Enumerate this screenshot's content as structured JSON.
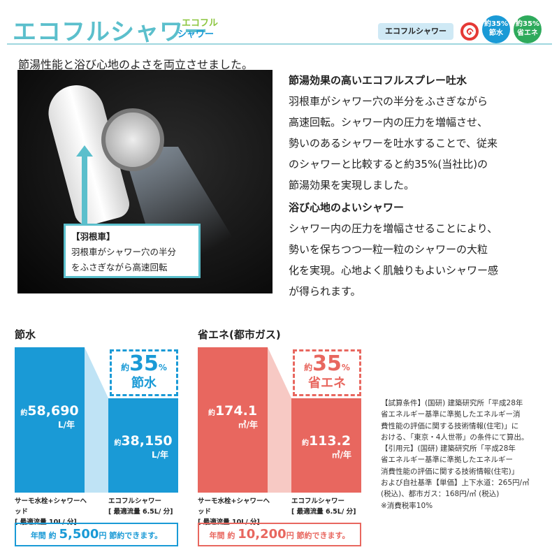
{
  "header": {
    "title": "エコフルシャワー",
    "logo_line1": "エコフル",
    "logo_line2": "シャワー",
    "badge_name": "エコフルシャワー",
    "gmark": "G",
    "badge_water": {
      "top": "約35%",
      "bottom": "節水"
    },
    "badge_energy": {
      "top": "約35%",
      "bottom": "省エネ"
    }
  },
  "subtitle": "節湯性能と浴び心地のよさを両立させました。",
  "photo_callout": {
    "title": "【羽根車】",
    "line1": "羽根車がシャワー穴の半分",
    "line2": "をふさぎながら高速回転"
  },
  "feature1": {
    "heading": "節湯効果の高いエコフルスプレー吐水",
    "lines": [
      "羽根車がシャワー穴の半分をふさぎながら",
      "高速回転。シャワー内の圧力を増幅させ、",
      "勢いのあるシャワーを吐水することで、従来",
      "のシャワーと比較すると約35%(当社比)の",
      "節湯効果を実現しました。"
    ]
  },
  "feature2": {
    "heading": "浴び心地のよいシャワー",
    "lines": [
      "シャワー内の圧力を増幅させることにより、",
      "勢いを保ちつつ一粒一粒のシャワーの大粒",
      "化を実現。心地よく肌触りもよいシャワー感",
      "が得られます。"
    ]
  },
  "colors": {
    "water": "#1a9ad6",
    "water_light": "#bfe3f5",
    "energy": "#e8675f",
    "energy_light": "#f7c9c4",
    "accent": "#5bbfcc"
  },
  "chart_data": [
    {
      "type": "bar",
      "title": "節水",
      "categories": [
        "サーモ水栓+シャワーヘッド",
        "エコフルシャワー"
      ],
      "category_sub": [
        "[ 最適流量 10L/ 分]",
        "[ 最適流量 6.5L/ 分]"
      ],
      "values": [
        58690,
        38150
      ],
      "value_labels": [
        "58,690",
        "38,150"
      ],
      "prefix": "約",
      "unit": "L/年",
      "reduction": {
        "prefix": "約",
        "value": "35",
        "pct": "%",
        "label": "節水"
      },
      "saving": {
        "pre": "年間 約",
        "amount": "5,500",
        "yen": "円",
        "post": "節約できます。"
      }
    },
    {
      "type": "bar",
      "title": "省エネ(都市ガス)",
      "categories": [
        "サーモ水栓+シャワーヘッド",
        "エコフルシャワー"
      ],
      "category_sub": [
        "[ 最適流量 10L/ 分]",
        "[ 最適流量 6.5L/ 分]"
      ],
      "values": [
        174.1,
        113.2
      ],
      "value_labels": [
        "174.1",
        "113.2"
      ],
      "prefix": "約",
      "unit": "㎥/年",
      "reduction": {
        "prefix": "約",
        "value": "35",
        "pct": "%",
        "label": "省エネ"
      },
      "saving": {
        "pre": "年間 約",
        "amount": "10,200",
        "yen": "円",
        "post": "節約できます。"
      }
    }
  ],
  "note": [
    "【試算条件】(国研) 建築研究所「平成28年",
    "省エネルギー基準に準拠したエネルギー消",
    "費性能の評価に関する技術情報(住宅)」に",
    "おける、「東京・4人世帯」の条件にて算出。",
    "【引用元】(国研) 建築研究所「平成28年",
    "省エネルギー基準に準拠したエネルギー",
    "消費性能の評価に関する技術情報(住宅)」",
    "および自社基準【単価】上下水道：265円/㎥",
    "(税込)、都市ガス：168円/㎥ (税込)",
    "※消費税率10%"
  ]
}
